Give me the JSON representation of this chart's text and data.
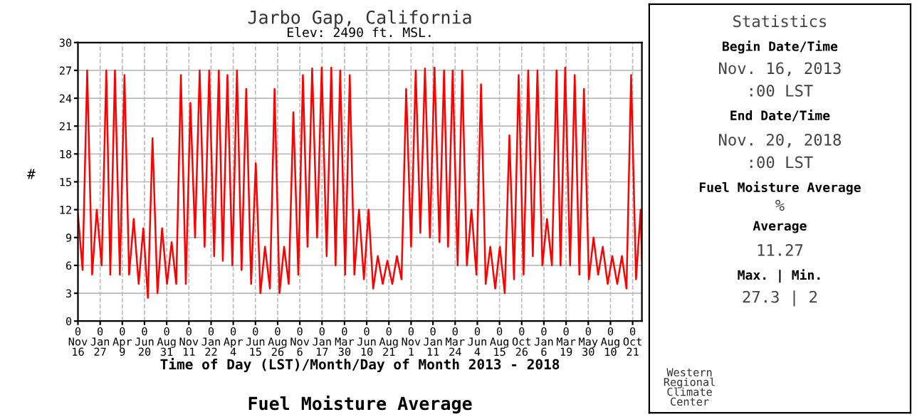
{
  "chart_data": {
    "type": "line",
    "title": "Jarbo Gap, California",
    "subtitle": "Elev: 2490 ft. MSL.",
    "xlabel": "Time of Day (LST)/Month/Day of Month 2013 - 2018",
    "ylabel": "#",
    "x": [
      "2013-11-16",
      "2013-12-01",
      "2013-12-16",
      "2014-01-01",
      "2014-01-16",
      "2014-02-01",
      "2014-02-16",
      "2014-03-01",
      "2014-03-16",
      "2014-04-01",
      "2014-04-16",
      "2014-05-01",
      "2014-05-16",
      "2014-06-01",
      "2014-06-16",
      "2014-07-01",
      "2014-07-16",
      "2014-08-01",
      "2014-08-16",
      "2014-09-01",
      "2014-09-16",
      "2014-10-01",
      "2014-10-16",
      "2014-11-01",
      "2014-11-16",
      "2014-12-01",
      "2014-12-16",
      "2015-01-01",
      "2015-01-16",
      "2015-02-01",
      "2015-02-16",
      "2015-03-01",
      "2015-03-16",
      "2015-04-01",
      "2015-04-16",
      "2015-05-01",
      "2015-05-16",
      "2015-06-01",
      "2015-06-16",
      "2015-07-01",
      "2015-07-16",
      "2015-08-01",
      "2015-08-16",
      "2015-09-01",
      "2015-09-16",
      "2015-10-01",
      "2015-10-16",
      "2015-11-01",
      "2015-11-16",
      "2015-12-01",
      "2015-12-16",
      "2016-01-01",
      "2016-01-16",
      "2016-02-01",
      "2016-02-16",
      "2016-03-01",
      "2016-03-16",
      "2016-04-01",
      "2016-04-16",
      "2016-05-01",
      "2016-05-16",
      "2016-06-01",
      "2016-06-16",
      "2016-07-01",
      "2016-07-16",
      "2016-08-01",
      "2016-08-16",
      "2016-09-01",
      "2016-09-16",
      "2016-10-01",
      "2016-10-16",
      "2016-11-01",
      "2016-11-16",
      "2016-12-01",
      "2016-12-16",
      "2017-01-01",
      "2017-01-16",
      "2017-02-01",
      "2017-02-16",
      "2017-03-01",
      "2017-03-16",
      "2017-04-01",
      "2017-04-16",
      "2017-05-01",
      "2017-05-16",
      "2017-06-01",
      "2017-06-16",
      "2017-07-01",
      "2017-07-16",
      "2017-08-01",
      "2017-08-16",
      "2017-09-01",
      "2017-09-16",
      "2017-10-01",
      "2017-10-16",
      "2017-11-01",
      "2017-11-16",
      "2017-12-01",
      "2017-12-16",
      "2018-01-01",
      "2018-01-16",
      "2018-02-01",
      "2018-02-16",
      "2018-03-01",
      "2018-03-16",
      "2018-04-01",
      "2018-04-16",
      "2018-05-01",
      "2018-05-16",
      "2018-06-01",
      "2018-06-16",
      "2018-07-01",
      "2018-07-16",
      "2018-08-01",
      "2018-08-16",
      "2018-09-01",
      "2018-09-16",
      "2018-10-01",
      "2018-10-16",
      "2018-11-01",
      "2018-11-16",
      "2018-11-20"
    ],
    "series": [
      {
        "color": "#ff0000",
        "values": [
          11.5,
          5.5,
          27,
          5,
          12,
          6,
          27,
          5,
          27,
          5,
          26.5,
          5,
          11,
          4,
          10,
          2.5,
          19.7,
          3,
          10,
          4,
          8.5,
          4,
          26.5,
          4,
          23.5,
          9,
          27,
          8,
          27,
          7,
          27,
          6.5,
          26.5,
          6,
          27,
          5.5,
          25,
          4,
          17,
          3,
          8,
          3.5,
          25,
          3,
          8,
          4,
          22.5,
          5,
          26.5,
          8,
          27.2,
          9,
          27.3,
          7,
          27.3,
          6,
          27,
          5,
          26.5,
          5,
          12,
          4.5,
          12,
          3.5,
          7,
          4,
          6.5,
          4,
          7,
          4.5,
          25,
          8,
          27,
          9.5,
          27.2,
          9,
          27.3,
          8.5,
          27,
          8,
          27,
          6,
          27,
          6,
          12,
          5,
          25.5,
          4,
          8,
          3.5,
          8,
          3,
          20,
          4.5,
          26.5,
          5,
          27,
          7,
          27,
          6,
          11,
          6,
          27,
          6,
          27.3,
          6,
          26.5,
          5,
          25,
          4.5,
          9,
          5,
          8,
          4,
          7,
          4,
          7,
          3.5,
          26.5,
          4.5,
          12,
          6.5
        ]
      }
    ],
    "xlim": [
      "2013-11-16",
      "2018-11-20"
    ],
    "xticks": [
      {
        "value": "2013-11-16",
        "label": "0\nNov\n16"
      },
      {
        "value": "2014-01-27",
        "label": "0\nJan\n27"
      },
      {
        "value": "2014-04-09",
        "label": "0\nApr\n9"
      },
      {
        "value": "2014-06-20",
        "label": "0\nJun\n20"
      },
      {
        "value": "2014-08-31",
        "label": "0\nAug\n31"
      },
      {
        "value": "2014-11-11",
        "label": "0\nNov\n11"
      },
      {
        "value": "2015-01-22",
        "label": "0\nJan\n22"
      },
      {
        "value": "2015-04-04",
        "label": "0\nApr\n4"
      },
      {
        "value": "2015-06-15",
        "label": "0\nJun\n15"
      },
      {
        "value": "2015-08-26",
        "label": "0\nAug\n26"
      },
      {
        "value": "2015-11-06",
        "label": "0\nNov\n6"
      },
      {
        "value": "2016-01-17",
        "label": "0\nJan\n17"
      },
      {
        "value": "2016-03-30",
        "label": "0\nMar\n30"
      },
      {
        "value": "2016-06-10",
        "label": "0\nJun\n10"
      },
      {
        "value": "2016-08-21",
        "label": "0\nAug\n21"
      },
      {
        "value": "2016-11-01",
        "label": "0\nNov\n1"
      },
      {
        "value": "2017-01-11",
        "label": "0\nJan\n11"
      },
      {
        "value": "2017-03-24",
        "label": "0\nMar\n24"
      },
      {
        "value": "2017-06-04",
        "label": "0\nJun\n4"
      },
      {
        "value": "2017-08-15",
        "label": "0\nAug\n15"
      },
      {
        "value": "2017-10-26",
        "label": "0\nOct\n26"
      },
      {
        "value": "2018-01-06",
        "label": "0\nJan\n6"
      },
      {
        "value": "2018-03-19",
        "label": "0\nMar\n19"
      },
      {
        "value": "2018-05-30",
        "label": "0\nMay\n30"
      },
      {
        "value": "2018-08-10",
        "label": "0\nAug\n10"
      },
      {
        "value": "2018-10-21",
        "label": "0\nOct\n21"
      }
    ],
    "ylim": [
      0,
      30
    ],
    "yticks": [
      0,
      3,
      6,
      9,
      12,
      15,
      18,
      21,
      24,
      27,
      30
    ],
    "grid": true,
    "legend": false,
    "line_style": "solid",
    "annotations": [
      "Fuel Moisture Average",
      "Western\nRegional\nClimate\nCenter",
      "Statistics",
      "Begin Date/Time",
      "Nov. 16, 2013",
      ":00 LST",
      "End Date/Time",
      "Nov. 20, 2018",
      ":00 LST",
      "Fuel Moisture Average",
      "%",
      "Average",
      "11.27",
      "Max. | Min.",
      "27.3 | 2"
    ]
  }
}
